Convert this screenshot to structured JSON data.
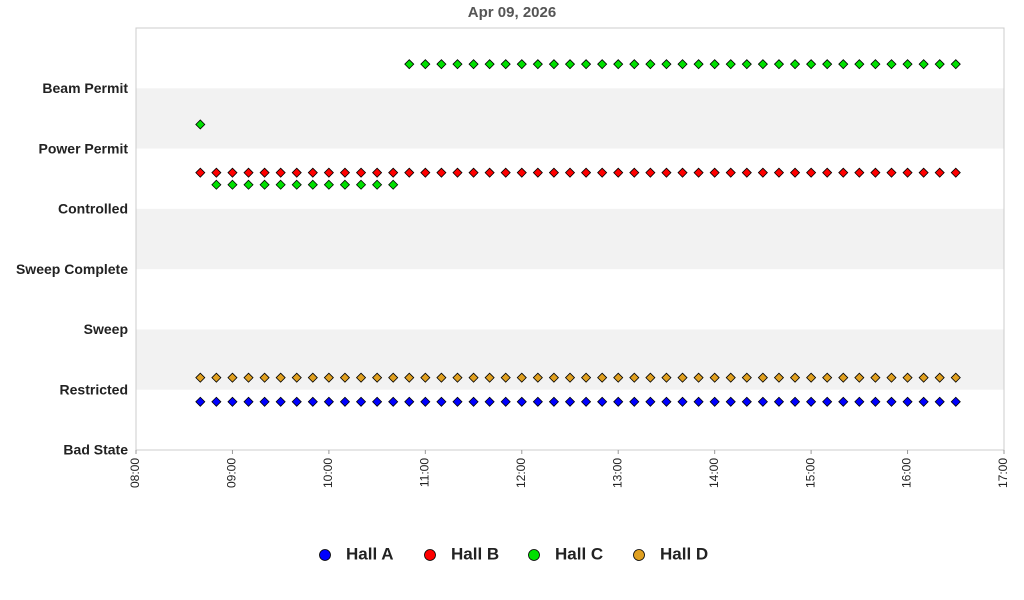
{
  "chart_data": {
    "type": "scatter",
    "title": "Apr 09, 2026",
    "x": [
      "08:40",
      "08:50",
      "09:00",
      "09:10",
      "09:20",
      "09:30",
      "09:40",
      "09:50",
      "10:00",
      "10:10",
      "10:20",
      "10:30",
      "10:40",
      "10:50",
      "11:00",
      "11:10",
      "11:20",
      "11:30",
      "11:40",
      "11:50",
      "12:00",
      "12:10",
      "12:20",
      "12:30",
      "12:40",
      "12:50",
      "13:00",
      "13:10",
      "13:20",
      "13:30",
      "13:40",
      "13:50",
      "14:00",
      "14:10",
      "14:20",
      "14:30",
      "14:40",
      "14:50",
      "15:00",
      "15:10",
      "15:20",
      "15:30",
      "15:40",
      "15:50",
      "16:00",
      "16:10",
      "16:20",
      "16:30"
    ],
    "xlim": [
      "08:00",
      "17:00"
    ],
    "xticks": [
      "08:00",
      "09:00",
      "10:00",
      "11:00",
      "12:00",
      "13:00",
      "14:00",
      "15:00",
      "16:00",
      "17:00"
    ],
    "ylim": [
      0,
      7
    ],
    "yticks": [
      {
        "value": 0,
        "label": "Bad State"
      },
      {
        "value": 1,
        "label": "Restricted"
      },
      {
        "value": 2,
        "label": "Sweep"
      },
      {
        "value": 3,
        "label": "Sweep Complete"
      },
      {
        "value": 4,
        "label": "Controlled"
      },
      {
        "value": 5,
        "label": "Power Permit"
      },
      {
        "value": 6,
        "label": "Beam Permit"
      }
    ],
    "band_color": "#f2f2f2",
    "series": [
      {
        "name": "Hall A",
        "color": "#0000ff",
        "values": [
          0.8,
          0.8,
          0.8,
          0.8,
          0.8,
          0.8,
          0.8,
          0.8,
          0.8,
          0.8,
          0.8,
          0.8,
          0.8,
          0.8,
          0.8,
          0.8,
          0.8,
          0.8,
          0.8,
          0.8,
          0.8,
          0.8,
          0.8,
          0.8,
          0.8,
          0.8,
          0.8,
          0.8,
          0.8,
          0.8,
          0.8,
          0.8,
          0.8,
          0.8,
          0.8,
          0.8,
          0.8,
          0.8,
          0.8,
          0.8,
          0.8,
          0.8,
          0.8,
          0.8,
          0.8,
          0.8,
          0.8,
          0.8
        ]
      },
      {
        "name": "Hall B",
        "color": "#ff0000",
        "values": [
          4.6,
          4.6,
          4.6,
          4.6,
          4.6,
          4.6,
          4.6,
          4.6,
          4.6,
          4.6,
          4.6,
          4.6,
          4.6,
          4.6,
          4.6,
          4.6,
          4.6,
          4.6,
          4.6,
          4.6,
          4.6,
          4.6,
          4.6,
          4.6,
          4.6,
          4.6,
          4.6,
          4.6,
          4.6,
          4.6,
          4.6,
          4.6,
          4.6,
          4.6,
          4.6,
          4.6,
          4.6,
          4.6,
          4.6,
          4.6,
          4.6,
          4.6,
          4.6,
          4.6,
          4.6,
          4.6,
          4.6,
          4.6
        ]
      },
      {
        "name": "Hall C",
        "color": "#00e000",
        "values": [
          5.4,
          4.4,
          4.4,
          4.4,
          4.4,
          4.4,
          4.4,
          4.4,
          4.4,
          4.4,
          4.4,
          4.4,
          4.4,
          6.4,
          6.4,
          6.4,
          6.4,
          6.4,
          6.4,
          6.4,
          6.4,
          6.4,
          6.4,
          6.4,
          6.4,
          6.4,
          6.4,
          6.4,
          6.4,
          6.4,
          6.4,
          6.4,
          6.4,
          6.4,
          6.4,
          6.4,
          6.4,
          6.4,
          6.4,
          6.4,
          6.4,
          6.4,
          6.4,
          6.4,
          6.4,
          6.4,
          6.4,
          6.4
        ]
      },
      {
        "name": "Hall D",
        "color": "#e0a020",
        "values": [
          1.2,
          1.2,
          1.2,
          1.2,
          1.2,
          1.2,
          1.2,
          1.2,
          1.2,
          1.2,
          1.2,
          1.2,
          1.2,
          1.2,
          1.2,
          1.2,
          1.2,
          1.2,
          1.2,
          1.2,
          1.2,
          1.2,
          1.2,
          1.2,
          1.2,
          1.2,
          1.2,
          1.2,
          1.2,
          1.2,
          1.2,
          1.2,
          1.2,
          1.2,
          1.2,
          1.2,
          1.2,
          1.2,
          1.2,
          1.2,
          1.2,
          1.2,
          1.2,
          1.2,
          1.2,
          1.2,
          1.2,
          1.2
        ]
      }
    ]
  }
}
